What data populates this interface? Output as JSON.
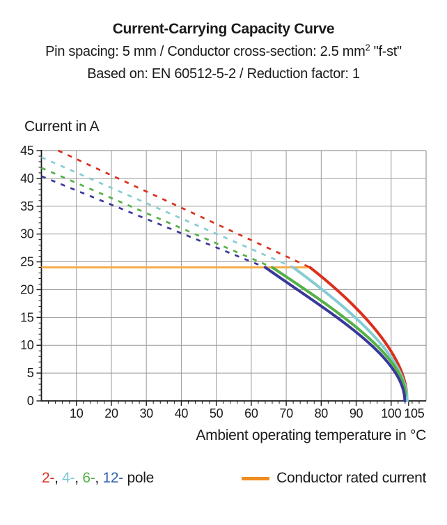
{
  "header": {
    "title": "Current-Carrying Capacity Curve",
    "subtitle1": {
      "pre": "Pin spacing: 5 mm / Conductor cross-section: 2.5 mm",
      "sup": "2",
      "post": " \"f-st\""
    },
    "subtitle2": "Based on: EN 60512-5-2 / Reduction factor: 1"
  },
  "chart_data": {
    "type": "line",
    "title": "Current-Carrying Capacity Curve",
    "ylabel": "Current in A",
    "xlabel": "Ambient operating temperature in °C",
    "xlim": [
      0,
      110
    ],
    "ylim": [
      0,
      45
    ],
    "grid": true,
    "x_major_tick_labels": [
      10,
      20,
      30,
      40,
      50,
      60,
      70,
      80,
      90,
      100,
      105
    ],
    "x_major_step": 10,
    "x_minor_step": 2,
    "y_major_tick_labels": [
      0,
      5,
      10,
      15,
      20,
      25,
      30,
      35,
      40,
      45
    ],
    "y_major_step": 5,
    "y_minor_step": 1,
    "rated_line": {
      "label": "Conductor rated current",
      "value_amps": 24,
      "x_start": 0,
      "x_end": 76.8,
      "color": "#f7a73e",
      "swatch_color": "#ee8c1f"
    },
    "legend": {
      "separator": ", ",
      "suffix": " pole"
    },
    "series": [
      {
        "name": "2-pole",
        "legend_label": "2-",
        "color": "#dc2f1b",
        "legend_color": "#dc2f1b",
        "dashed_segment": [
          [
            4.8,
            45
          ],
          [
            76.8,
            24
          ]
        ],
        "solid_bezier": [
          [
            76.8,
            24
          ],
          [
            91,
            17
          ],
          [
            104.5,
            8
          ],
          [
            104.5,
            0.6
          ]
        ]
      },
      {
        "name": "4-pole",
        "legend_label": "4-",
        "color": "#85ccd3",
        "legend_color": "#7cc6d2",
        "dashed_segment": [
          [
            0,
            43.8
          ],
          [
            72,
            24
          ]
        ],
        "solid_bezier": [
          [
            72,
            24
          ],
          [
            88,
            16.5
          ],
          [
            104.6,
            8
          ],
          [
            104.6,
            0
          ]
        ]
      },
      {
        "name": "6-pole",
        "legend_label": "6-",
        "color": "#53b148",
        "legend_color": "#53b148",
        "dashed_segment": [
          [
            0,
            41.9
          ],
          [
            66,
            24
          ]
        ],
        "solid_bezier": [
          [
            66,
            24
          ],
          [
            84,
            16.5
          ],
          [
            104.1,
            8
          ],
          [
            104.1,
            1.0
          ]
        ]
      },
      {
        "name": "12-pole",
        "legend_label": "12-",
        "color": "#39399b",
        "legend_color": "#2c62ae",
        "dashed_segment": [
          [
            0,
            40.4
          ],
          [
            64,
            24
          ]
        ],
        "solid_bezier": [
          [
            64,
            24
          ],
          [
            82,
            16
          ],
          [
            103.9,
            8
          ],
          [
            103.9,
            0
          ]
        ]
      }
    ],
    "colors": {
      "grid": "#999999",
      "axis": "#1a1a1a",
      "text": "#1a1a1a"
    }
  }
}
